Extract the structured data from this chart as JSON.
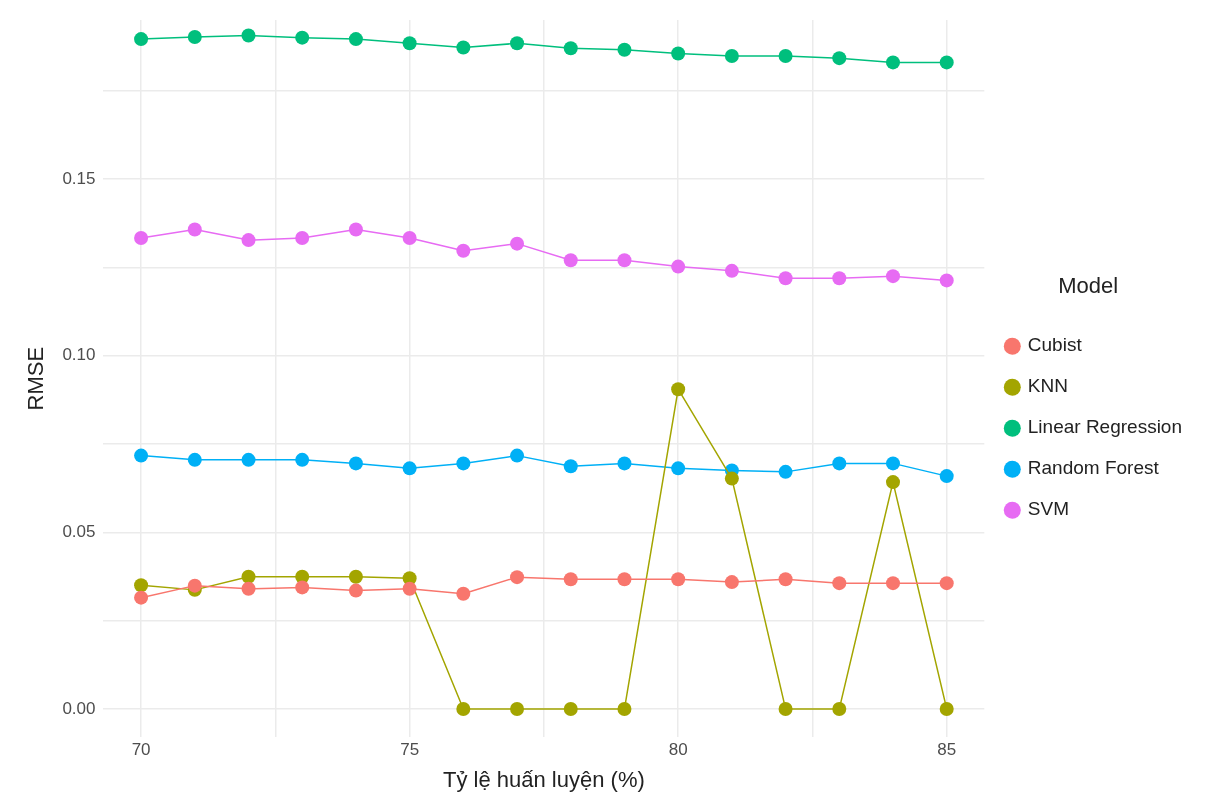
{
  "chart_data": {
    "type": "line",
    "xlabel": "Tỷ lệ huấn luyện (%)",
    "ylabel": "RMSE",
    "legend_title": "Model",
    "legend": "right",
    "grid": true,
    "marker": "circle",
    "line_style": "solid",
    "x": [
      70,
      71,
      72,
      73,
      74,
      75,
      76,
      77,
      78,
      79,
      80,
      81,
      82,
      83,
      84,
      85
    ],
    "xlim": [
      69.3,
      85.7
    ],
    "xticks": [
      70,
      {
        "value": 72.5,
        "label": null
      },
      75,
      {
        "value": 77.5,
        "label": null
      },
      80,
      {
        "value": 82.5,
        "label": null
      },
      85
    ],
    "ylim": [
      -0.008,
      0.195
    ],
    "yticks": [
      {
        "value": 0,
        "label": "0.00"
      },
      {
        "value": 0.025,
        "label": null
      },
      {
        "value": 0.05,
        "label": "0.05"
      },
      {
        "value": 0.075,
        "label": null
      },
      {
        "value": 0.1,
        "label": "0.10"
      },
      {
        "value": 0.125,
        "label": null
      },
      {
        "value": 0.15,
        "label": "0.15"
      },
      {
        "value": 0.175,
        "label": null
      }
    ],
    "series": [
      {
        "name": "Cubist",
        "color": "#f8766d",
        "values": [
          0.0315,
          0.0349,
          0.034,
          0.0344,
          0.0335,
          0.034,
          0.0326,
          0.0373,
          0.0367,
          0.0367,
          0.0367,
          0.0359,
          0.0367,
          0.0356,
          0.0356,
          0.0356
        ]
      },
      {
        "name": "KNN",
        "color": "#a3a500",
        "values": [
          0.035,
          0.0337,
          0.0374,
          0.0374,
          0.0374,
          0.037,
          0,
          0,
          0,
          0,
          0.0905,
          0.0652,
          0,
          0,
          0.0642,
          0
        ]
      },
      {
        "name": "Linear Regression",
        "color": "#00bf7d",
        "values": [
          0.1896,
          0.1902,
          0.1906,
          0.19,
          0.1896,
          0.1884,
          0.1872,
          0.1884,
          0.187,
          0.1866,
          0.1855,
          0.1848,
          0.1848,
          0.1842,
          0.183,
          0.183
        ]
      },
      {
        "name": "Random Forest",
        "color": "#00b0f6",
        "values": [
          0.0717,
          0.0705,
          0.0705,
          0.0705,
          0.0695,
          0.0681,
          0.0695,
          0.0717,
          0.0687,
          0.0695,
          0.0681,
          0.0675,
          0.0671,
          0.0695,
          0.0695,
          0.0659
        ]
      },
      {
        "name": "SVM",
        "color": "#e76bf3",
        "values": [
          0.1333,
          0.1357,
          0.1327,
          0.1333,
          0.1357,
          0.1333,
          0.1297,
          0.1317,
          0.127,
          0.127,
          0.1252,
          0.124,
          0.1219,
          0.1219,
          0.1225,
          0.1213
        ]
      }
    ]
  }
}
